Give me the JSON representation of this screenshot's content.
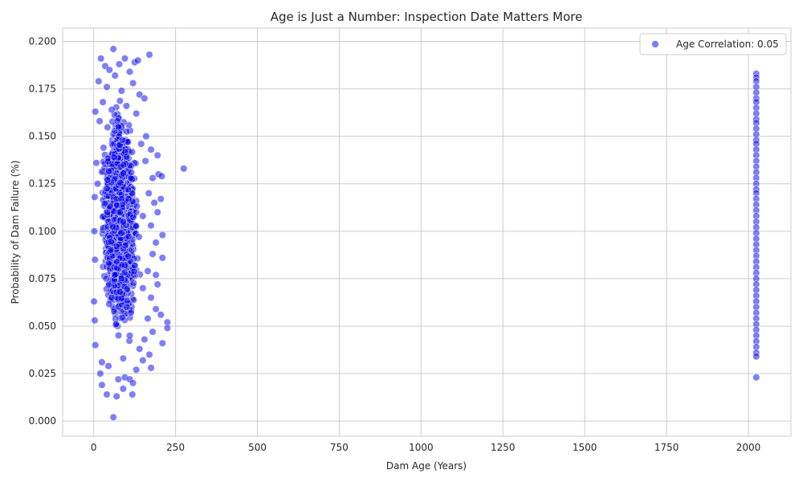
{
  "chart_data": {
    "type": "scatter",
    "title": "Age is Just a Number: Inspection Date Matters More",
    "xlabel": "Dam Age (Years)",
    "ylabel": "Probability of Dam Failure (%)",
    "xlim": [
      -95,
      2130
    ],
    "ylim": [
      -0.008,
      0.207
    ],
    "xticks": [
      0,
      250,
      500,
      750,
      1000,
      1250,
      1500,
      1750,
      2000
    ],
    "yticks": [
      0.0,
      0.025,
      0.05,
      0.075,
      0.1,
      0.125,
      0.15,
      0.175,
      0.2
    ],
    "xtick_labels": [
      "0",
      "250",
      "500",
      "750",
      "1000",
      "1250",
      "1500",
      "1750",
      "2000"
    ],
    "ytick_labels": [
      "0.000",
      "0.025",
      "0.050",
      "0.075",
      "0.100",
      "0.125",
      "0.150",
      "0.175",
      "0.200"
    ],
    "grid": true,
    "legend_position": "top-right",
    "point_color": "#0000ee",
    "point_opacity": 0.5,
    "series": [
      {
        "name": "Age Correlation: 0.05",
        "points": [
          [
            60,
            0.196
          ],
          [
            170,
            0.193
          ],
          [
            22,
            0.191
          ],
          [
            95,
            0.191
          ],
          [
            125,
            0.189
          ],
          [
            35,
            0.187
          ],
          [
            78,
            0.188
          ],
          [
            135,
            0.19
          ],
          [
            48,
            0.185
          ],
          [
            110,
            0.184
          ],
          [
            15,
            0.179
          ],
          [
            65,
            0.182
          ],
          [
            120,
            0.178
          ],
          [
            40,
            0.176
          ],
          [
            85,
            0.174
          ],
          [
            140,
            0.172
          ],
          [
            155,
            0.17
          ],
          [
            28,
            0.168
          ],
          [
            100,
            0.166
          ],
          [
            55,
            0.164
          ],
          [
            5,
            0.163
          ],
          [
            130,
            0.162
          ],
          [
            160,
            0.15
          ],
          [
            75,
            0.155
          ],
          [
            18,
            0.158
          ],
          [
            145,
            0.146
          ],
          [
            195,
            0.14
          ],
          [
            88,
            0.148
          ],
          [
            30,
            0.144
          ],
          [
            175,
            0.143
          ],
          [
            8,
            0.136
          ],
          [
            62,
            0.139
          ],
          [
            158,
            0.137
          ],
          [
            275,
            0.133
          ],
          [
            198,
            0.13
          ],
          [
            208,
            0.129
          ],
          [
            115,
            0.131
          ],
          [
            42,
            0.127
          ],
          [
            180,
            0.128
          ],
          [
            12,
            0.125
          ],
          [
            105,
            0.122
          ],
          [
            168,
            0.12
          ],
          [
            205,
            0.117
          ],
          [
            185,
            0.115
          ],
          [
            3,
            0.118
          ],
          [
            50,
            0.113
          ],
          [
            195,
            0.11
          ],
          [
            150,
            0.108
          ],
          [
            90,
            0.105
          ],
          [
            175,
            0.103
          ],
          [
            2,
            0.1
          ],
          [
            210,
            0.098
          ],
          [
            138,
            0.097
          ],
          [
            190,
            0.094
          ],
          [
            70,
            0.092
          ],
          [
            180,
            0.088
          ],
          [
            210,
            0.086
          ],
          [
            4,
            0.085
          ],
          [
            125,
            0.082
          ],
          [
            165,
            0.079
          ],
          [
            190,
            0.077
          ],
          [
            38,
            0.075
          ],
          [
            195,
            0.072
          ],
          [
            150,
            0.07
          ],
          [
            80,
            0.068
          ],
          [
            175,
            0.065
          ],
          [
            1,
            0.063
          ],
          [
            190,
            0.059
          ],
          [
            205,
            0.056
          ],
          [
            165,
            0.054
          ],
          [
            225,
            0.052
          ],
          [
            3,
            0.053
          ],
          [
            225,
            0.049
          ],
          [
            180,
            0.047
          ],
          [
            110,
            0.045
          ],
          [
            155,
            0.043
          ],
          [
            210,
            0.041
          ],
          [
            5,
            0.04
          ],
          [
            140,
            0.038
          ],
          [
            170,
            0.035
          ],
          [
            90,
            0.033
          ],
          [
            150,
            0.032
          ],
          [
            25,
            0.031
          ],
          [
            175,
            0.028
          ],
          [
            45,
            0.029
          ],
          [
            130,
            0.027
          ],
          [
            20,
            0.025
          ],
          [
            95,
            0.023
          ],
          [
            75,
            0.022
          ],
          [
            110,
            0.022
          ],
          [
            120,
            0.02
          ],
          [
            25,
            0.019
          ],
          [
            90,
            0.017
          ],
          [
            40,
            0.014
          ],
          [
            70,
            0.013
          ],
          [
            118,
            0.014
          ],
          [
            60,
            0.002
          ],
          [
            2024,
            0.183
          ],
          [
            2024,
            0.181
          ],
          [
            2024,
            0.179
          ],
          [
            2024,
            0.176
          ],
          [
            2024,
            0.173
          ],
          [
            2024,
            0.17
          ],
          [
            2024,
            0.168
          ],
          [
            2024,
            0.165
          ],
          [
            2024,
            0.162
          ],
          [
            2024,
            0.159
          ],
          [
            2024,
            0.157
          ],
          [
            2024,
            0.154
          ],
          [
            2024,
            0.151
          ],
          [
            2024,
            0.148
          ],
          [
            2024,
            0.146
          ],
          [
            2024,
            0.143
          ],
          [
            2024,
            0.14
          ],
          [
            2024,
            0.137
          ],
          [
            2024,
            0.134
          ],
          [
            2024,
            0.131
          ],
          [
            2024,
            0.128
          ],
          [
            2024,
            0.125
          ],
          [
            2024,
            0.122
          ],
          [
            2024,
            0.12
          ],
          [
            2024,
            0.117
          ],
          [
            2024,
            0.114
          ],
          [
            2024,
            0.111
          ],
          [
            2024,
            0.108
          ],
          [
            2024,
            0.105
          ],
          [
            2024,
            0.102
          ],
          [
            2024,
            0.099
          ],
          [
            2024,
            0.096
          ],
          [
            2024,
            0.093
          ],
          [
            2024,
            0.09
          ],
          [
            2024,
            0.087
          ],
          [
            2024,
            0.084
          ],
          [
            2024,
            0.081
          ],
          [
            2024,
            0.078
          ],
          [
            2024,
            0.075
          ],
          [
            2024,
            0.072
          ],
          [
            2024,
            0.069
          ],
          [
            2024,
            0.066
          ],
          [
            2024,
            0.063
          ],
          [
            2024,
            0.06
          ],
          [
            2024,
            0.057
          ],
          [
            2024,
            0.054
          ],
          [
            2024,
            0.051
          ],
          [
            2024,
            0.048
          ],
          [
            2024,
            0.045
          ],
          [
            2024,
            0.042
          ],
          [
            2024,
            0.039
          ],
          [
            2024,
            0.036
          ],
          [
            2024,
            0.034
          ],
          [
            2024,
            0.023
          ]
        ],
        "dense_clusters": [
          {
            "x_range": [
              5,
              155
            ],
            "y_range": [
              0.025,
              0.185
            ],
            "count": 2400
          }
        ]
      }
    ]
  }
}
